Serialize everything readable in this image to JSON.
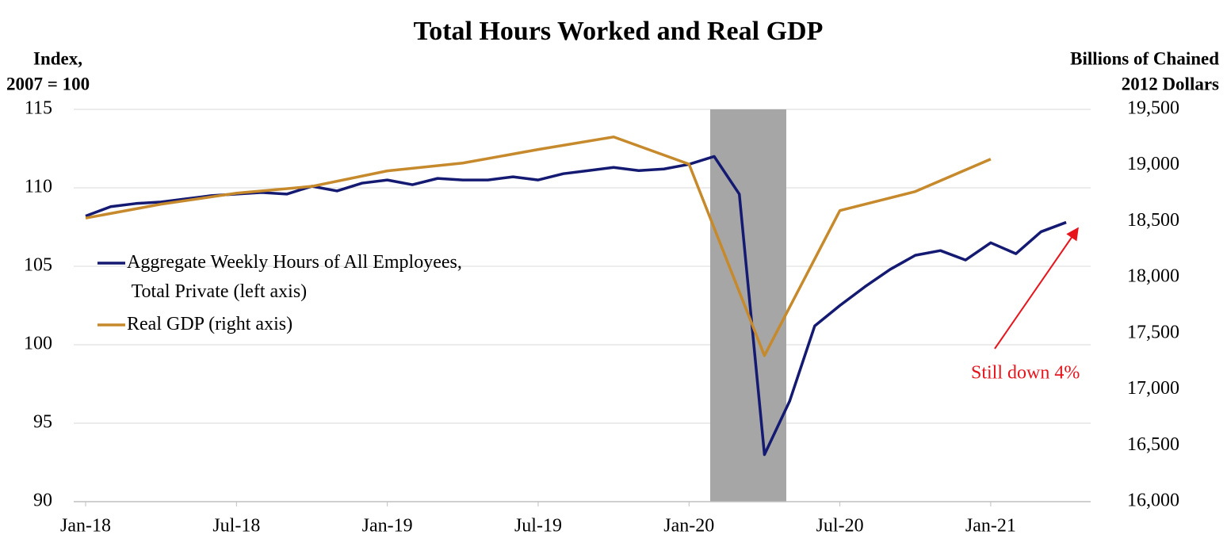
{
  "chart_data": {
    "type": "line",
    "title": "Total Hours Worked and Real GDP",
    "y_label": [
      "Index,",
      "2007 = 100"
    ],
    "y2_label": [
      "Billions of Chained",
      "2012 Dollars"
    ],
    "categories": [
      "Jan-18",
      null,
      null,
      null,
      null,
      null,
      "Jul-18",
      null,
      null,
      null,
      null,
      null,
      "Jan-19",
      null,
      null,
      null,
      null,
      null,
      "Jul-19",
      null,
      null,
      null,
      null,
      null,
      "Jan-20",
      null,
      null,
      null,
      null,
      null,
      "Jul-20",
      null,
      null,
      null,
      null,
      null,
      "Jan-21",
      null,
      null,
      null
    ],
    "series": [
      {
        "name": "Aggregate Weekly Hours of All Employees, Total Private (left axis)",
        "color": "#141a72",
        "axis": "y",
        "values": [
          108.2,
          108.8,
          109.0,
          109.1,
          109.3,
          109.5,
          109.6,
          109.7,
          109.6,
          110.1,
          109.8,
          110.3,
          110.5,
          110.2,
          110.6,
          110.5,
          110.5,
          110.7,
          110.5,
          110.9,
          111.1,
          111.3,
          111.1,
          111.2,
          111.5,
          112.0,
          109.6,
          93.0,
          96.4,
          101.2,
          102.5,
          103.7,
          104.8,
          105.7,
          106.0,
          105.4,
          106.5,
          105.8,
          107.2,
          107.8
        ]
      },
      {
        "name": "Real GDP (right axis)",
        "color": "#c68a2c",
        "axis": "y2",
        "connect_nulls": true,
        "values": [
          18530,
          null,
          null,
          18654,
          null,
          null,
          18752,
          null,
          null,
          18813,
          null,
          null,
          18951,
          null,
          null,
          19021,
          null,
          null,
          19142,
          null,
          null,
          19254,
          null,
          null,
          19011,
          null,
          null,
          17303,
          null,
          null,
          18597,
          null,
          null,
          18767,
          null,
          null,
          19056,
          null,
          null,
          null
        ]
      }
    ],
    "ylim": [
      90,
      115
    ],
    "yticks": [
      90,
      95,
      100,
      105,
      110,
      115
    ],
    "y2lim": [
      16000,
      19500
    ],
    "y2ticks": [
      {
        "value": 16000,
        "label": "16,000"
      },
      {
        "value": 16500,
        "label": "16,500"
      },
      {
        "value": 17000,
        "label": "17,000"
      },
      {
        "value": 17500,
        "label": "17,500"
      },
      {
        "value": 18000,
        "label": "18,000"
      },
      {
        "value": 18500,
        "label": "18,500"
      },
      {
        "value": 19000,
        "label": "19,000"
      },
      {
        "value": 19500,
        "label": "19,500"
      }
    ],
    "grid": true,
    "annotation": "Still down 4%"
  }
}
